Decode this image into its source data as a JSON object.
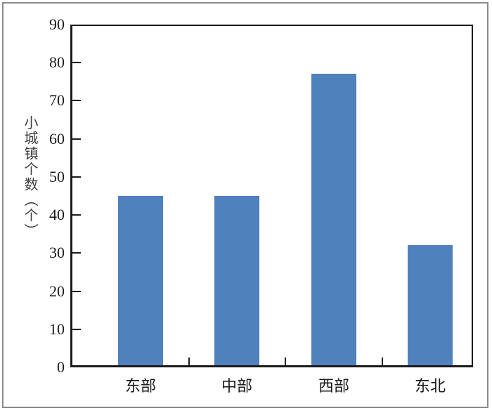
{
  "chart_data": {
    "type": "bar",
    "title": "",
    "categories": [
      "东部",
      "中部",
      "西部",
      "东北"
    ],
    "values": [
      45,
      45,
      77,
      32
    ],
    "xlabel": "",
    "ylabel": "小城镇个数（个）",
    "ylim": [
      0,
      90
    ],
    "yticks": [
      0,
      10,
      20,
      30,
      40,
      50,
      60,
      70,
      80,
      90
    ],
    "grid": false,
    "legend": "none",
    "bar_color": "#4F81BD",
    "axis_color": "#1a1a1a",
    "tick_text_color": "#1a1a1a",
    "ylabel_color": "#3d3d3d",
    "frame_color": "#8a8a8a",
    "background": "#ffffff"
  }
}
